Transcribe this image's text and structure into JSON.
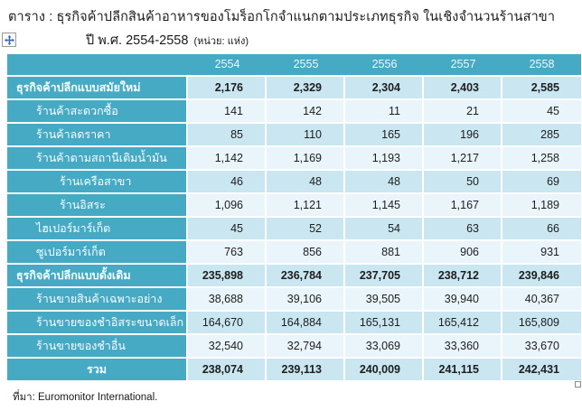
{
  "title": {
    "line1": "ตาราง : ธุรกิจค้าปลีกสินค้าอาหารของโมร็อกโกจำแนกตามประเภทธุรกิจ  ในเชิงจำนวนร้านสาขา",
    "line2": "ปี พ.ศ. 2554-2558",
    "unit_note": "(หน่วย: แห่ง)"
  },
  "colors": {
    "teal": "#47aac4",
    "band_blue": "#c9e6f1",
    "band_pale": "#e9f5fa",
    "header_text": "#edf7fa"
  },
  "icons": {
    "move_handle": "table-move-handle",
    "resize_handle": "table-resize-handle"
  },
  "table": {
    "years": [
      "2554",
      "2555",
      "2556",
      "2557",
      "2558"
    ],
    "rows": [
      {
        "label": "ธุรกิจค้าปลีกแบบสมัยใหม่",
        "indent": 0,
        "bold": true,
        "center": false,
        "band": "blue",
        "values": [
          "2,176",
          "2,329",
          "2,304",
          "2,403",
          "2,585"
        ]
      },
      {
        "label": "ร้านค้าสะดวกซื้อ",
        "indent": 1,
        "bold": false,
        "center": false,
        "band": "pale",
        "values": [
          "141",
          "142",
          "11",
          "21",
          "45"
        ]
      },
      {
        "label": "ร้านค้าลดราคา",
        "indent": 1,
        "bold": false,
        "center": false,
        "band": "blue",
        "values": [
          "85",
          "110",
          "165",
          "196",
          "285"
        ]
      },
      {
        "label": "ร้านค้าตามสถานีเติมน้ำมัน",
        "indent": 1,
        "bold": false,
        "center": false,
        "band": "pale",
        "values": [
          "1,142",
          "1,169",
          "1,193",
          "1,217",
          "1,258"
        ]
      },
      {
        "label": "ร้านเครือสาขา",
        "indent": 2,
        "bold": false,
        "center": false,
        "band": "blue",
        "values": [
          "46",
          "48",
          "48",
          "50",
          "69"
        ]
      },
      {
        "label": "ร้านอิสระ",
        "indent": 2,
        "bold": false,
        "center": false,
        "band": "pale",
        "values": [
          "1,096",
          "1,121",
          "1,145",
          "1,167",
          "1,189"
        ]
      },
      {
        "label": "ไฮเปอร์มาร์เก็ต",
        "indent": 1,
        "bold": false,
        "center": false,
        "band": "blue",
        "values": [
          "45",
          "52",
          "54",
          "63",
          "66"
        ]
      },
      {
        "label": "ซูเปอร์มาร์เก็ต",
        "indent": 1,
        "bold": false,
        "center": false,
        "band": "pale",
        "values": [
          "763",
          "856",
          "881",
          "906",
          "931"
        ]
      },
      {
        "label": "ธุรกิจค้าปลีกแบบดั้งเดิม",
        "indent": 0,
        "bold": true,
        "center": false,
        "band": "blue",
        "values": [
          "235,898",
          "236,784",
          "237,705",
          "238,712",
          "239,846"
        ]
      },
      {
        "label": "ร้านขายสินค้าเฉพาะอย่าง",
        "indent": 1,
        "bold": false,
        "center": false,
        "band": "pale",
        "values": [
          "38,688",
          "39,106",
          "39,505",
          "39,940",
          "40,367"
        ]
      },
      {
        "label": "ร้านขายของชำอิสระขนาดเล็ก",
        "indent": 1,
        "bold": false,
        "center": false,
        "band": "blue",
        "values": [
          "164,670",
          "164,884",
          "165,131",
          "165,412",
          "165,809"
        ]
      },
      {
        "label": "ร้านขายของชำอื่น",
        "indent": 1,
        "bold": false,
        "center": false,
        "band": "pale",
        "values": [
          "32,540",
          "32,794",
          "33,069",
          "33,360",
          "33,670"
        ]
      },
      {
        "label": "รวม",
        "indent": 0,
        "bold": true,
        "center": true,
        "band": "blue",
        "values": [
          "238,074",
          "239,113",
          "240,009",
          "241,115",
          "242,431"
        ]
      }
    ]
  },
  "source": {
    "text": "ที่มา:  Euromonitor International."
  }
}
